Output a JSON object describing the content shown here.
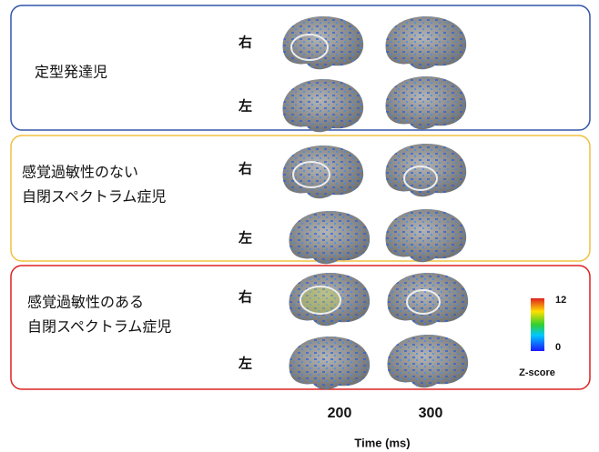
{
  "panels": [
    {
      "label_lines": [
        "定型発達児"
      ],
      "rows": [
        "右",
        "左"
      ]
    },
    {
      "label_lines": [
        "感覚過敏性のない",
        "自閉スペクトラム症児"
      ],
      "rows": [
        "右",
        "左"
      ]
    },
    {
      "label_lines": [
        "感覚過敏性のある",
        "自閉スペクトラム症児"
      ],
      "rows": [
        "右",
        "左"
      ]
    }
  ],
  "colorbar": {
    "max": 12,
    "min": 0,
    "title": "Z-score"
  },
  "time_labels": [
    200,
    300
  ],
  "x_axis_title": "Time (ms)"
}
